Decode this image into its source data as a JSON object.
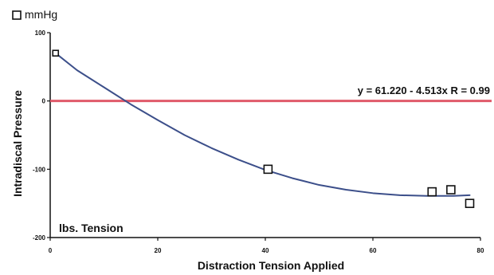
{
  "chart_data": {
    "type": "scatter",
    "legend": {
      "label": "mmHg",
      "marker": "square",
      "placement": "top-left"
    },
    "xlabel": "Distraction Tension Applied",
    "ylabel": "Intradiscal Pressure",
    "xlim": [
      0,
      80
    ],
    "ylim": [
      -200,
      100
    ],
    "x_ticks": [
      0,
      20,
      40,
      60,
      80
    ],
    "x_tick_labels": [
      "0",
      "20",
      "40",
      "60",
      "80"
    ],
    "y_ticks": [
      -200,
      -100,
      0,
      100
    ],
    "y_tick_labels": [
      "-200",
      "-100",
      "0",
      "100"
    ],
    "grid": false,
    "annotations": {
      "equation": "y = 61.220 - 4.513x   R = 0.99",
      "units_note": "lbs. Tension"
    },
    "reference_line": {
      "y": 0,
      "color": "#e05a6a"
    },
    "series": [
      {
        "name": "mmHg",
        "marker": "square",
        "points": [
          {
            "x": 1,
            "y": 70
          },
          {
            "x": 40.5,
            "y": -100
          },
          {
            "x": 71,
            "y": -133
          },
          {
            "x": 74.5,
            "y": -130
          },
          {
            "x": 78,
            "y": -150
          }
        ],
        "color": "#111111"
      }
    ],
    "trend_curve": {
      "color": "#3c4f8a",
      "points": [
        {
          "x": 1,
          "y": 70
        },
        {
          "x": 5,
          "y": 45
        },
        {
          "x": 10,
          "y": 20
        },
        {
          "x": 15,
          "y": -5
        },
        {
          "x": 20,
          "y": -28
        },
        {
          "x": 25,
          "y": -50
        },
        {
          "x": 30,
          "y": -69
        },
        {
          "x": 35,
          "y": -86
        },
        {
          "x": 40,
          "y": -101
        },
        {
          "x": 45,
          "y": -113
        },
        {
          "x": 50,
          "y": -123
        },
        {
          "x": 55,
          "y": -130
        },
        {
          "x": 60,
          "y": -135
        },
        {
          "x": 65,
          "y": -138
        },
        {
          "x": 70,
          "y": -139
        },
        {
          "x": 75,
          "y": -139
        },
        {
          "x": 78,
          "y": -138
        }
      ]
    },
    "colors": {
      "axis": "#111111",
      "text": "#111111",
      "background": "#ffffff"
    }
  }
}
